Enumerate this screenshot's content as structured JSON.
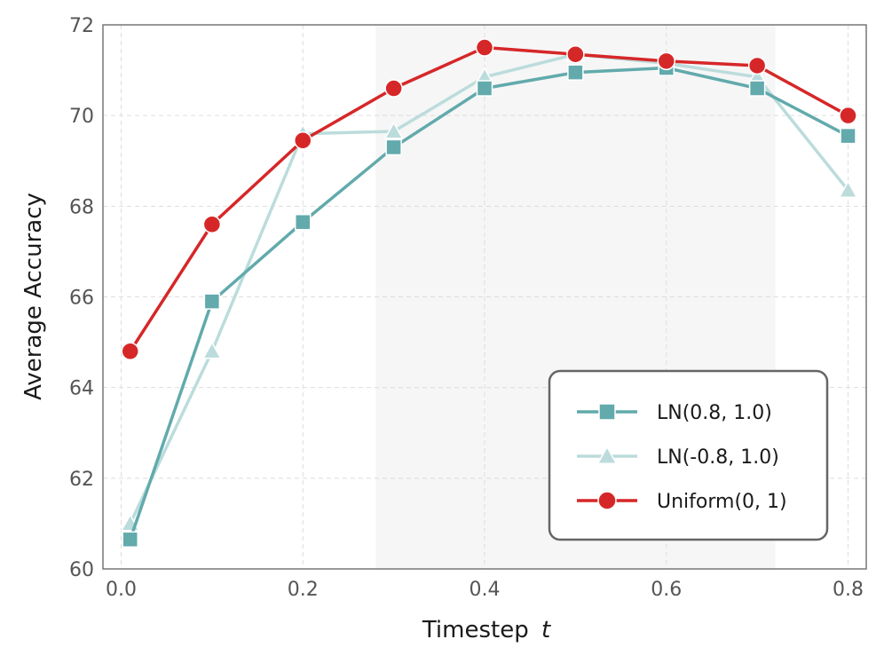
{
  "chart_data": {
    "type": "line",
    "title": "",
    "xlabel": "Timestep",
    "xlabel_var": "t",
    "ylabel": "Average Accuracy",
    "xlim": [
      -0.02,
      0.82
    ],
    "ylim": [
      60,
      72
    ],
    "xticks": [
      "0.0",
      "0.2",
      "0.4",
      "0.6",
      "0.8"
    ],
    "yticks": [
      "60",
      "62",
      "64",
      "66",
      "68",
      "70",
      "72"
    ],
    "grid": true,
    "shaded_region": [
      0.28,
      0.72
    ],
    "legend_position": "lower-right",
    "x": [
      0.01,
      0.1,
      0.2,
      0.3,
      0.4,
      0.5,
      0.6,
      0.7,
      0.8
    ],
    "series": [
      {
        "name": "LN(0.8, 1.0)",
        "marker": "square",
        "color": "#62aaac",
        "values": [
          60.65,
          65.9,
          67.65,
          69.3,
          70.6,
          70.95,
          71.05,
          70.6,
          69.55
        ]
      },
      {
        "name": "LN(-0.8, 1.0)",
        "marker": "triangle",
        "color": "#bcdcdc",
        "values": [
          61.0,
          64.8,
          69.6,
          69.65,
          70.85,
          71.35,
          71.15,
          70.85,
          68.35
        ]
      },
      {
        "name": "Uniform(0, 1)",
        "marker": "circle",
        "color": "#d62728",
        "values": [
          64.8,
          67.6,
          69.45,
          70.6,
          71.5,
          71.35,
          71.2,
          71.1,
          70.0
        ]
      }
    ]
  }
}
